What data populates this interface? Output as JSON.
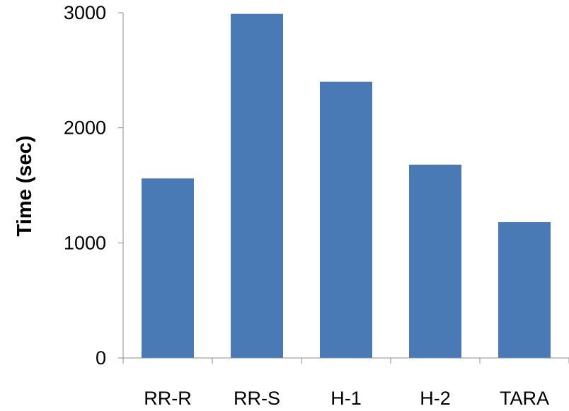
{
  "chart_data": {
    "type": "bar",
    "title": "",
    "xlabel": "",
    "ylabel": "Time (sec)",
    "categories": [
      "RR-R",
      "RR-S",
      "H-1",
      "H-2",
      "TARA"
    ],
    "values": [
      1560,
      2990,
      2400,
      1680,
      1180
    ],
    "ylim": [
      0,
      3000
    ],
    "yticks": [
      0,
      1000,
      2000,
      3000
    ],
    "grid": false,
    "legend": "none",
    "bar_color": "#4a7ab5"
  }
}
